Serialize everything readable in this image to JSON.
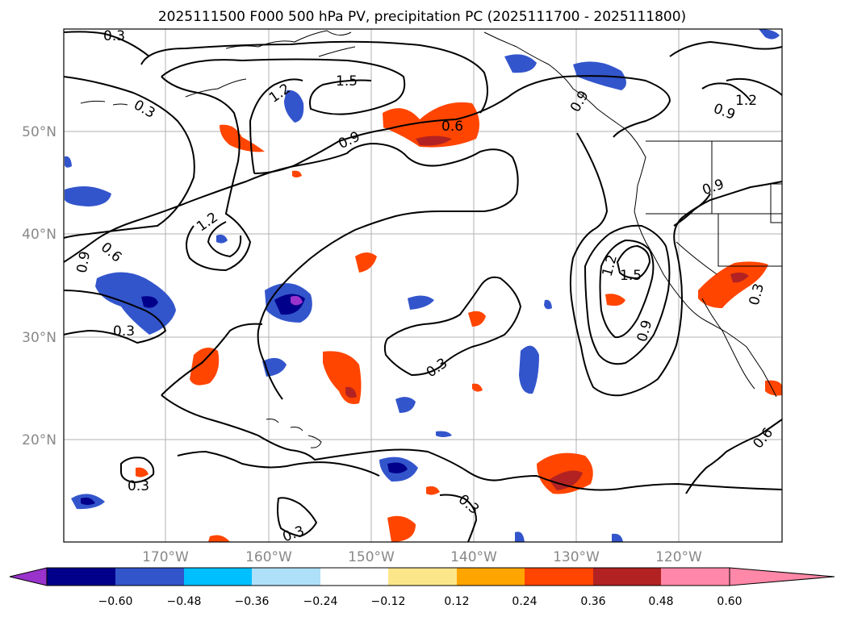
{
  "title": "2025111500 F000 500 hPa PV, precipitation PC (2025111700 - 2025111800)",
  "map": {
    "lat_labels": [
      "50°N",
      "40°N",
      "30°N",
      "20°N"
    ],
    "lon_labels": [
      "170°W",
      "160°W",
      "150°W",
      "140°W",
      "130°W",
      "120°W"
    ]
  },
  "colorbar": {
    "tick_labels": [
      "−0.60",
      "−0.48",
      "−0.36",
      "−0.24",
      "−0.12",
      "0.12",
      "0.24",
      "0.36",
      "0.48",
      "0.60"
    ],
    "colors": [
      "#9933cc",
      "#00008b",
      "#3355cc",
      "#00bfff",
      "#aee0fa",
      "#ffffff",
      "#fce68a",
      "#ffa500",
      "#ff4500",
      "#b22222",
      "#ff88a8"
    ]
  },
  "contour_labels": [
    "0.3",
    "1.2",
    "1.5",
    "0.3",
    "0.6",
    "1.2",
    "0.9",
    "0.9",
    "1.2",
    "0.6",
    "0.9",
    "1.2",
    "1.5",
    "0.9",
    "0.3",
    "0.9",
    "0.3",
    "0.3",
    "0.3",
    "0.3",
    "0.6",
    "0.3",
    "0.9"
  ],
  "contour_colors": {
    "line": "#000000",
    "coast": "#000000"
  }
}
